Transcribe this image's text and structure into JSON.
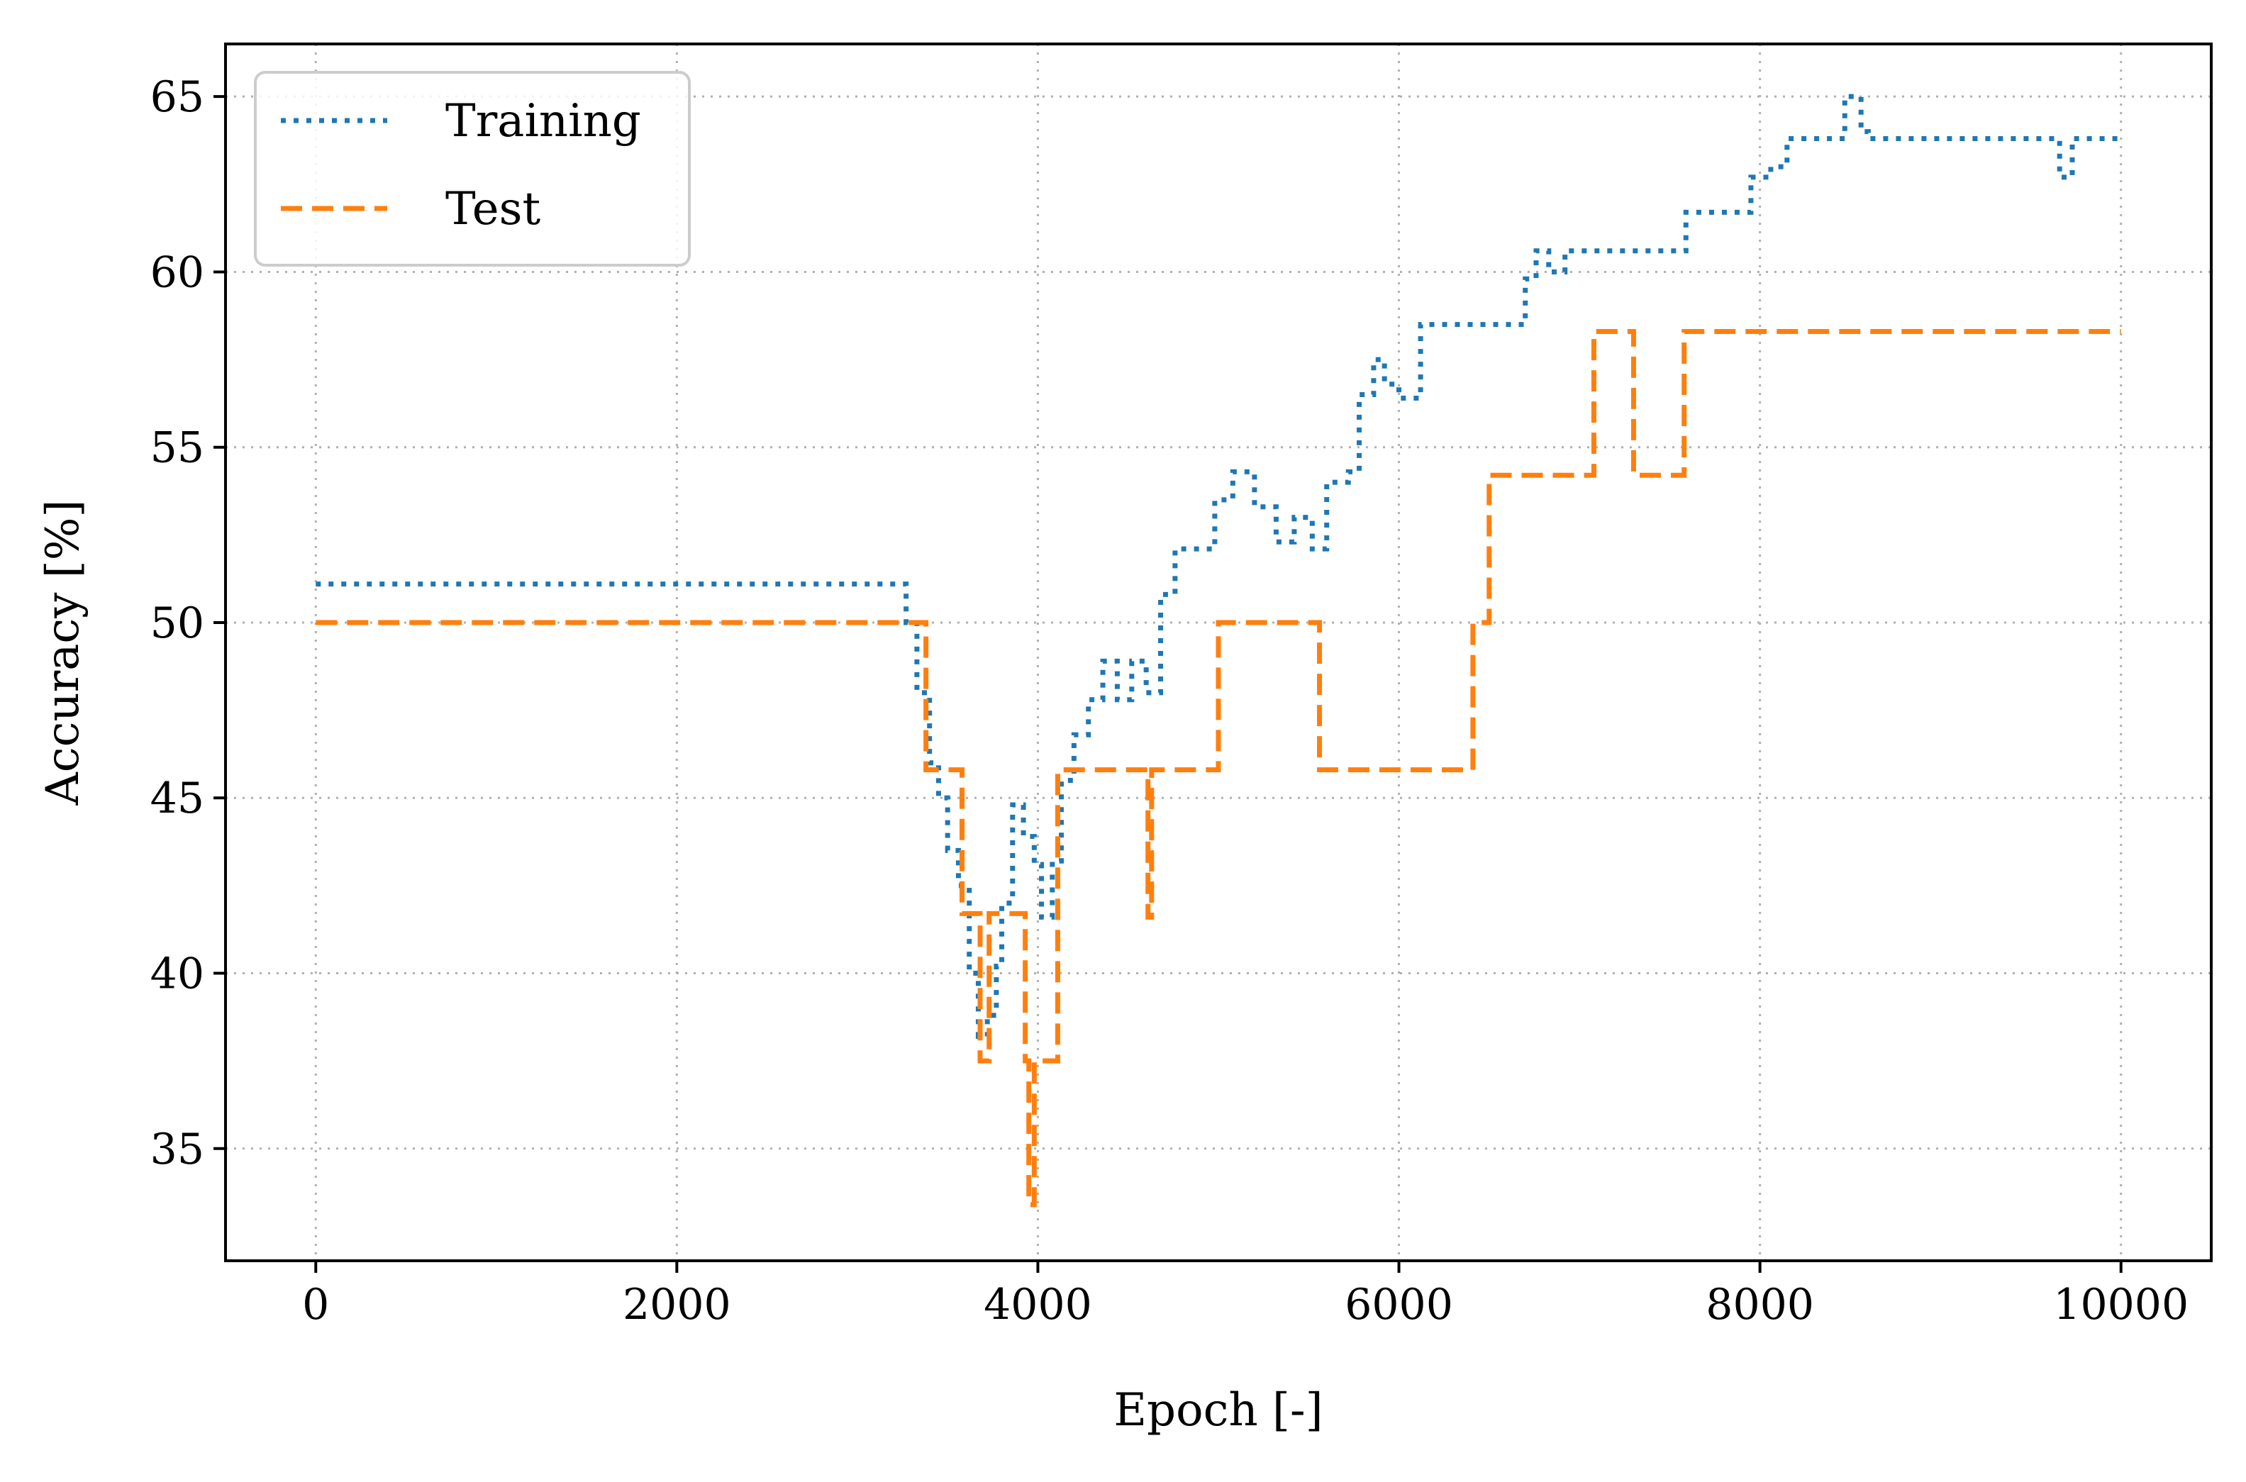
{
  "chart_data": {
    "type": "line",
    "title": "",
    "xlabel": "Epoch [-]",
    "ylabel": "Accuracy [%]",
    "xlim": [
      -500,
      10500
    ],
    "ylim": [
      31.8,
      66.5
    ],
    "xticks": [
      0,
      2000,
      4000,
      6000,
      8000,
      10000
    ],
    "yticks": [
      35,
      40,
      45,
      50,
      55,
      60,
      65
    ],
    "grid": true,
    "legend_position": "top-left",
    "series": [
      {
        "name": "Training",
        "style": "dotted",
        "color": "#1f77b4",
        "step": true,
        "points": [
          [
            0,
            51.1
          ],
          [
            3230,
            51.1
          ],
          [
            3270,
            50.0
          ],
          [
            3330,
            48.0
          ],
          [
            3400,
            46.0
          ],
          [
            3450,
            45.0
          ],
          [
            3500,
            43.5
          ],
          [
            3560,
            42.5
          ],
          [
            3620,
            40.0
          ],
          [
            3670,
            38.2
          ],
          [
            3720,
            38.8
          ],
          [
            3770,
            40.2
          ],
          [
            3800,
            42.0
          ],
          [
            3860,
            44.8
          ],
          [
            3920,
            43.9
          ],
          [
            3980,
            43.1
          ],
          [
            4020,
            41.6
          ],
          [
            4080,
            43.2
          ],
          [
            4130,
            45.5
          ],
          [
            4200,
            46.8
          ],
          [
            4280,
            47.8
          ],
          [
            4360,
            48.9
          ],
          [
            4440,
            47.8
          ],
          [
            4520,
            48.9
          ],
          [
            4600,
            48.0
          ],
          [
            4680,
            50.8
          ],
          [
            4760,
            52.1
          ],
          [
            4900,
            52.1
          ],
          [
            4980,
            53.5
          ],
          [
            5080,
            54.3
          ],
          [
            5200,
            53.3
          ],
          [
            5320,
            52.3
          ],
          [
            5420,
            53.0
          ],
          [
            5520,
            52.1
          ],
          [
            5600,
            54.0
          ],
          [
            5720,
            54.3
          ],
          [
            5780,
            56.5
          ],
          [
            5860,
            57.5
          ],
          [
            5920,
            56.8
          ],
          [
            6000,
            56.4
          ],
          [
            6120,
            58.5
          ],
          [
            6650,
            58.5
          ],
          [
            6700,
            59.8
          ],
          [
            6760,
            60.6
          ],
          [
            6830,
            60.0
          ],
          [
            6920,
            60.6
          ],
          [
            7530,
            60.6
          ],
          [
            7590,
            61.7
          ],
          [
            7900,
            61.7
          ],
          [
            7950,
            62.7
          ],
          [
            8060,
            63.0
          ],
          [
            8150,
            63.8
          ],
          [
            8400,
            63.8
          ],
          [
            8470,
            65.0
          ],
          [
            8560,
            64.0
          ],
          [
            8600,
            63.8
          ],
          [
            9600,
            63.8
          ],
          [
            9660,
            62.7
          ],
          [
            9730,
            63.8
          ],
          [
            10000,
            63.8
          ]
        ]
      },
      {
        "name": "Test",
        "style": "dashed",
        "color": "#ff7f0e",
        "step": true,
        "points": [
          [
            0,
            50.0
          ],
          [
            3380,
            50.0
          ],
          [
            3380,
            45.8
          ],
          [
            3580,
            45.8
          ],
          [
            3580,
            41.7
          ],
          [
            3680,
            41.7
          ],
          [
            3680,
            37.5
          ],
          [
            3730,
            37.5
          ],
          [
            3730,
            41.7
          ],
          [
            3930,
            41.7
          ],
          [
            3930,
            37.5
          ],
          [
            3950,
            37.5
          ],
          [
            3950,
            33.4
          ],
          [
            3980,
            33.4
          ],
          [
            3980,
            37.5
          ],
          [
            4110,
            37.5
          ],
          [
            4110,
            45.8
          ],
          [
            4610,
            45.8
          ],
          [
            4610,
            41.6
          ],
          [
            4630,
            41.6
          ],
          [
            4630,
            45.8
          ],
          [
            5000,
            45.8
          ],
          [
            5000,
            50.0
          ],
          [
            5560,
            50.0
          ],
          [
            5560,
            45.8
          ],
          [
            6410,
            45.8
          ],
          [
            6410,
            50.0
          ],
          [
            6500,
            50.0
          ],
          [
            6500,
            54.2
          ],
          [
            7080,
            54.2
          ],
          [
            7080,
            58.3
          ],
          [
            7300,
            58.3
          ],
          [
            7300,
            54.2
          ],
          [
            7580,
            54.2
          ],
          [
            7580,
            58.3
          ],
          [
            10000,
            58.3
          ]
        ]
      }
    ]
  }
}
